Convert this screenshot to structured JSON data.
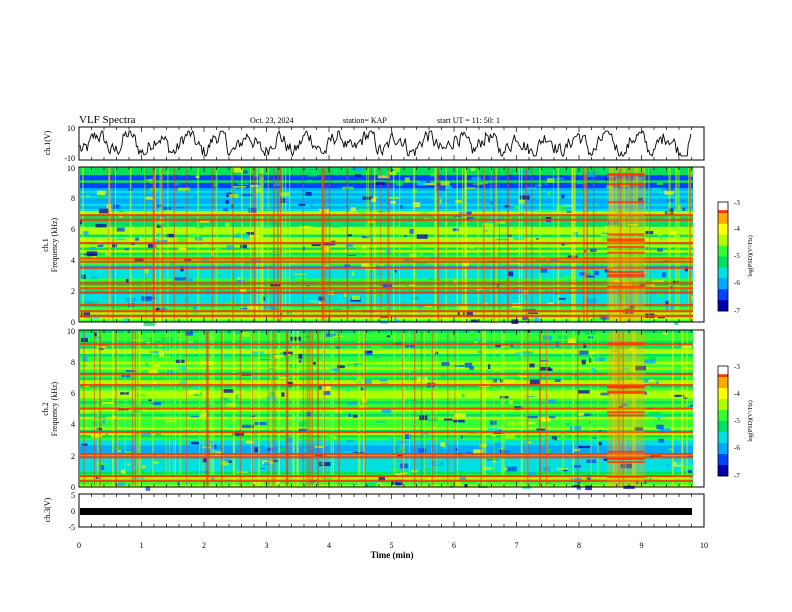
{
  "header": {
    "title": "VLF Spectra",
    "date": "Oct. 23, 2024",
    "station": "station= KAP",
    "start_ut": "start  UT =   11: 50: 1"
  },
  "chart_data": [
    {
      "type": "line",
      "name": "waveform",
      "ylabel": "ch.1(V)",
      "ylim": [
        -10,
        10
      ],
      "y_ticks": [
        "10",
        "-10"
      ],
      "xlim": [
        0,
        10
      ]
    },
    {
      "type": "heatmap",
      "name": "spectrogram",
      "ylabel_line1": "ch.1",
      "ylabel_line2": "Frequency (kHz)",
      "ylim": [
        0,
        10
      ],
      "y_ticks": [
        "0",
        "2",
        "4",
        "6",
        "8",
        "10"
      ],
      "xlim": [
        0,
        10
      ],
      "colorbar": {
        "label": "log(PSD)(V²/Hz)",
        "range": [
          -7,
          -3
        ],
        "ticks": [
          "-3",
          "-4",
          "-5",
          "-6",
          "-7"
        ]
      },
      "strong_bands_khz": [
        6.6,
        6.9,
        5.1,
        4.1,
        3.9,
        3.5,
        2.5,
        2.2,
        1.9,
        1.1,
        0.7,
        0.4
      ],
      "quiet_bands_khz": [
        8.2,
        7.6,
        3.2,
        1.6
      ],
      "burst_interval_min": [
        8.45,
        9.05
      ]
    },
    {
      "type": "heatmap",
      "name": "spectrogram",
      "ylabel_line1": "ch.2",
      "ylabel_line2": "Frequency (kHz)",
      "ylim": [
        0,
        10
      ],
      "y_ticks": [
        "0",
        "2",
        "4",
        "6",
        "8",
        "10"
      ],
      "xlim": [
        0,
        10
      ],
      "colorbar": {
        "label": "log(PSD)(V²/Hz)",
        "range": [
          -7,
          -3
        ],
        "ticks": [
          "-3",
          "-4",
          "-5",
          "-6",
          "-7"
        ]
      },
      "strong_bands_khz": [
        9.1,
        7.2,
        6.5,
        5.0,
        3.5,
        2.1,
        1.9,
        0.7,
        0.4
      ],
      "quiet_bands_khz": [
        2.6,
        1.5
      ],
      "burst_interval_min": [
        8.45,
        9.05
      ]
    },
    {
      "type": "line",
      "name": "channel-3",
      "ylabel": "ch.3(V)",
      "ylim": [
        -5,
        5
      ],
      "y_ticks": [
        "5",
        "0",
        "-5"
      ],
      "xlim": [
        0,
        10
      ],
      "xlabel": "Time  (min)",
      "x_ticks": [
        "0",
        "1",
        "2",
        "3",
        "4",
        "5",
        "6",
        "7",
        "8",
        "9",
        "10"
      ]
    }
  ],
  "colors": {
    "palette": [
      "#0000aa",
      "#0044ff",
      "#00aaff",
      "#00e0e0",
      "#00e060",
      "#33ff33",
      "#b0ff00",
      "#ffff00",
      "#ffaa00",
      "#ff3300",
      "#ffffff"
    ]
  }
}
